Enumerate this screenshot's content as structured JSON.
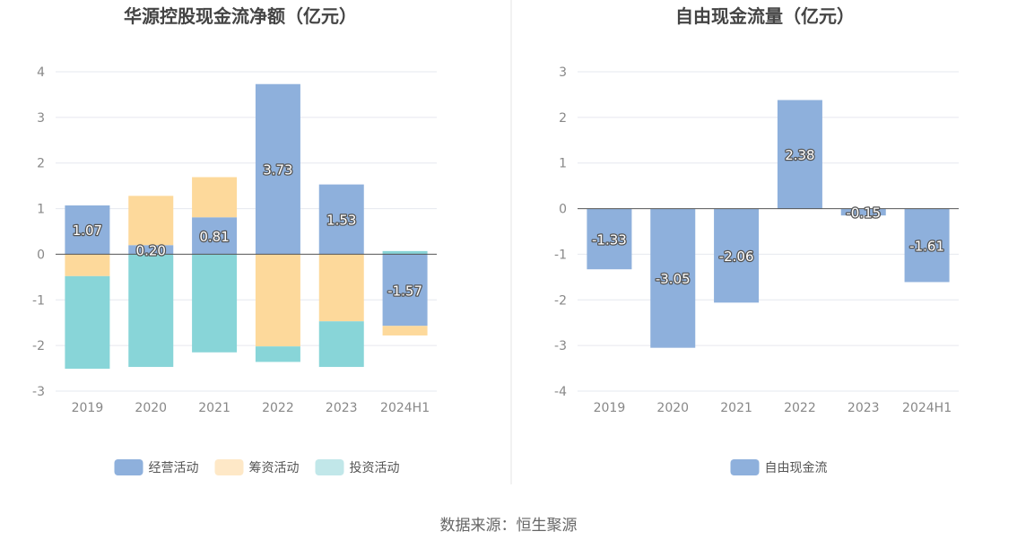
{
  "chart_data": [
    {
      "type": "bar",
      "stacked": true,
      "title": "华源控股现金流净额（亿元）",
      "categories": [
        "2019",
        "2020",
        "2021",
        "2022",
        "2023",
        "2024H1"
      ],
      "ylim": [
        -3,
        4
      ],
      "yticks": [
        4,
        3,
        2,
        1,
        0,
        -1,
        -2,
        -3
      ],
      "grid": true,
      "legend_position": "bottom",
      "series": [
        {
          "name": "经营活动",
          "color": "#8eb0dc",
          "values": [
            1.07,
            0.2,
            0.81,
            3.73,
            1.53,
            -1.57
          ],
          "labeled": true
        },
        {
          "name": "筹资活动",
          "color": "#fdd99b",
          "values": [
            -0.48,
            1.08,
            0.88,
            -2.02,
            -1.47,
            -0.21
          ],
          "labeled": false
        },
        {
          "name": "投资活动",
          "color": "#88d5d8",
          "values": [
            -2.03,
            -2.47,
            -2.15,
            -0.34,
            -1.0,
            0.07
          ],
          "labeled": false
        }
      ],
      "legend_swatch_colors": [
        "#8eb0dc",
        "#fee8c7",
        "#c1e7e9"
      ],
      "data_labels": [
        "1.07",
        "0.20",
        "0.81",
        "3.73",
        "1.53",
        "-1.57"
      ]
    },
    {
      "type": "bar",
      "title": "自由现金流量（亿元）",
      "categories": [
        "2019",
        "2020",
        "2021",
        "2022",
        "2023",
        "2024H1"
      ],
      "ylim": [
        -4,
        3
      ],
      "yticks": [
        3,
        2,
        1,
        0,
        -1,
        -2,
        -3,
        -4
      ],
      "grid": true,
      "legend_position": "bottom",
      "series": [
        {
          "name": "自由现金流",
          "color": "#8eb0dc",
          "values": [
            -1.33,
            -3.05,
            -2.06,
            2.38,
            -0.15,
            -1.61
          ]
        }
      ],
      "data_labels": [
        "-1.33",
        "-3.05",
        "-2.06",
        "2.38",
        "-0.15",
        "-1.61"
      ]
    }
  ],
  "footer": {
    "source": "数据来源：恒生聚源"
  },
  "colors": {
    "grid": "#e6e8ef",
    "axis": "#555555",
    "divider": "#e6e6e6"
  }
}
